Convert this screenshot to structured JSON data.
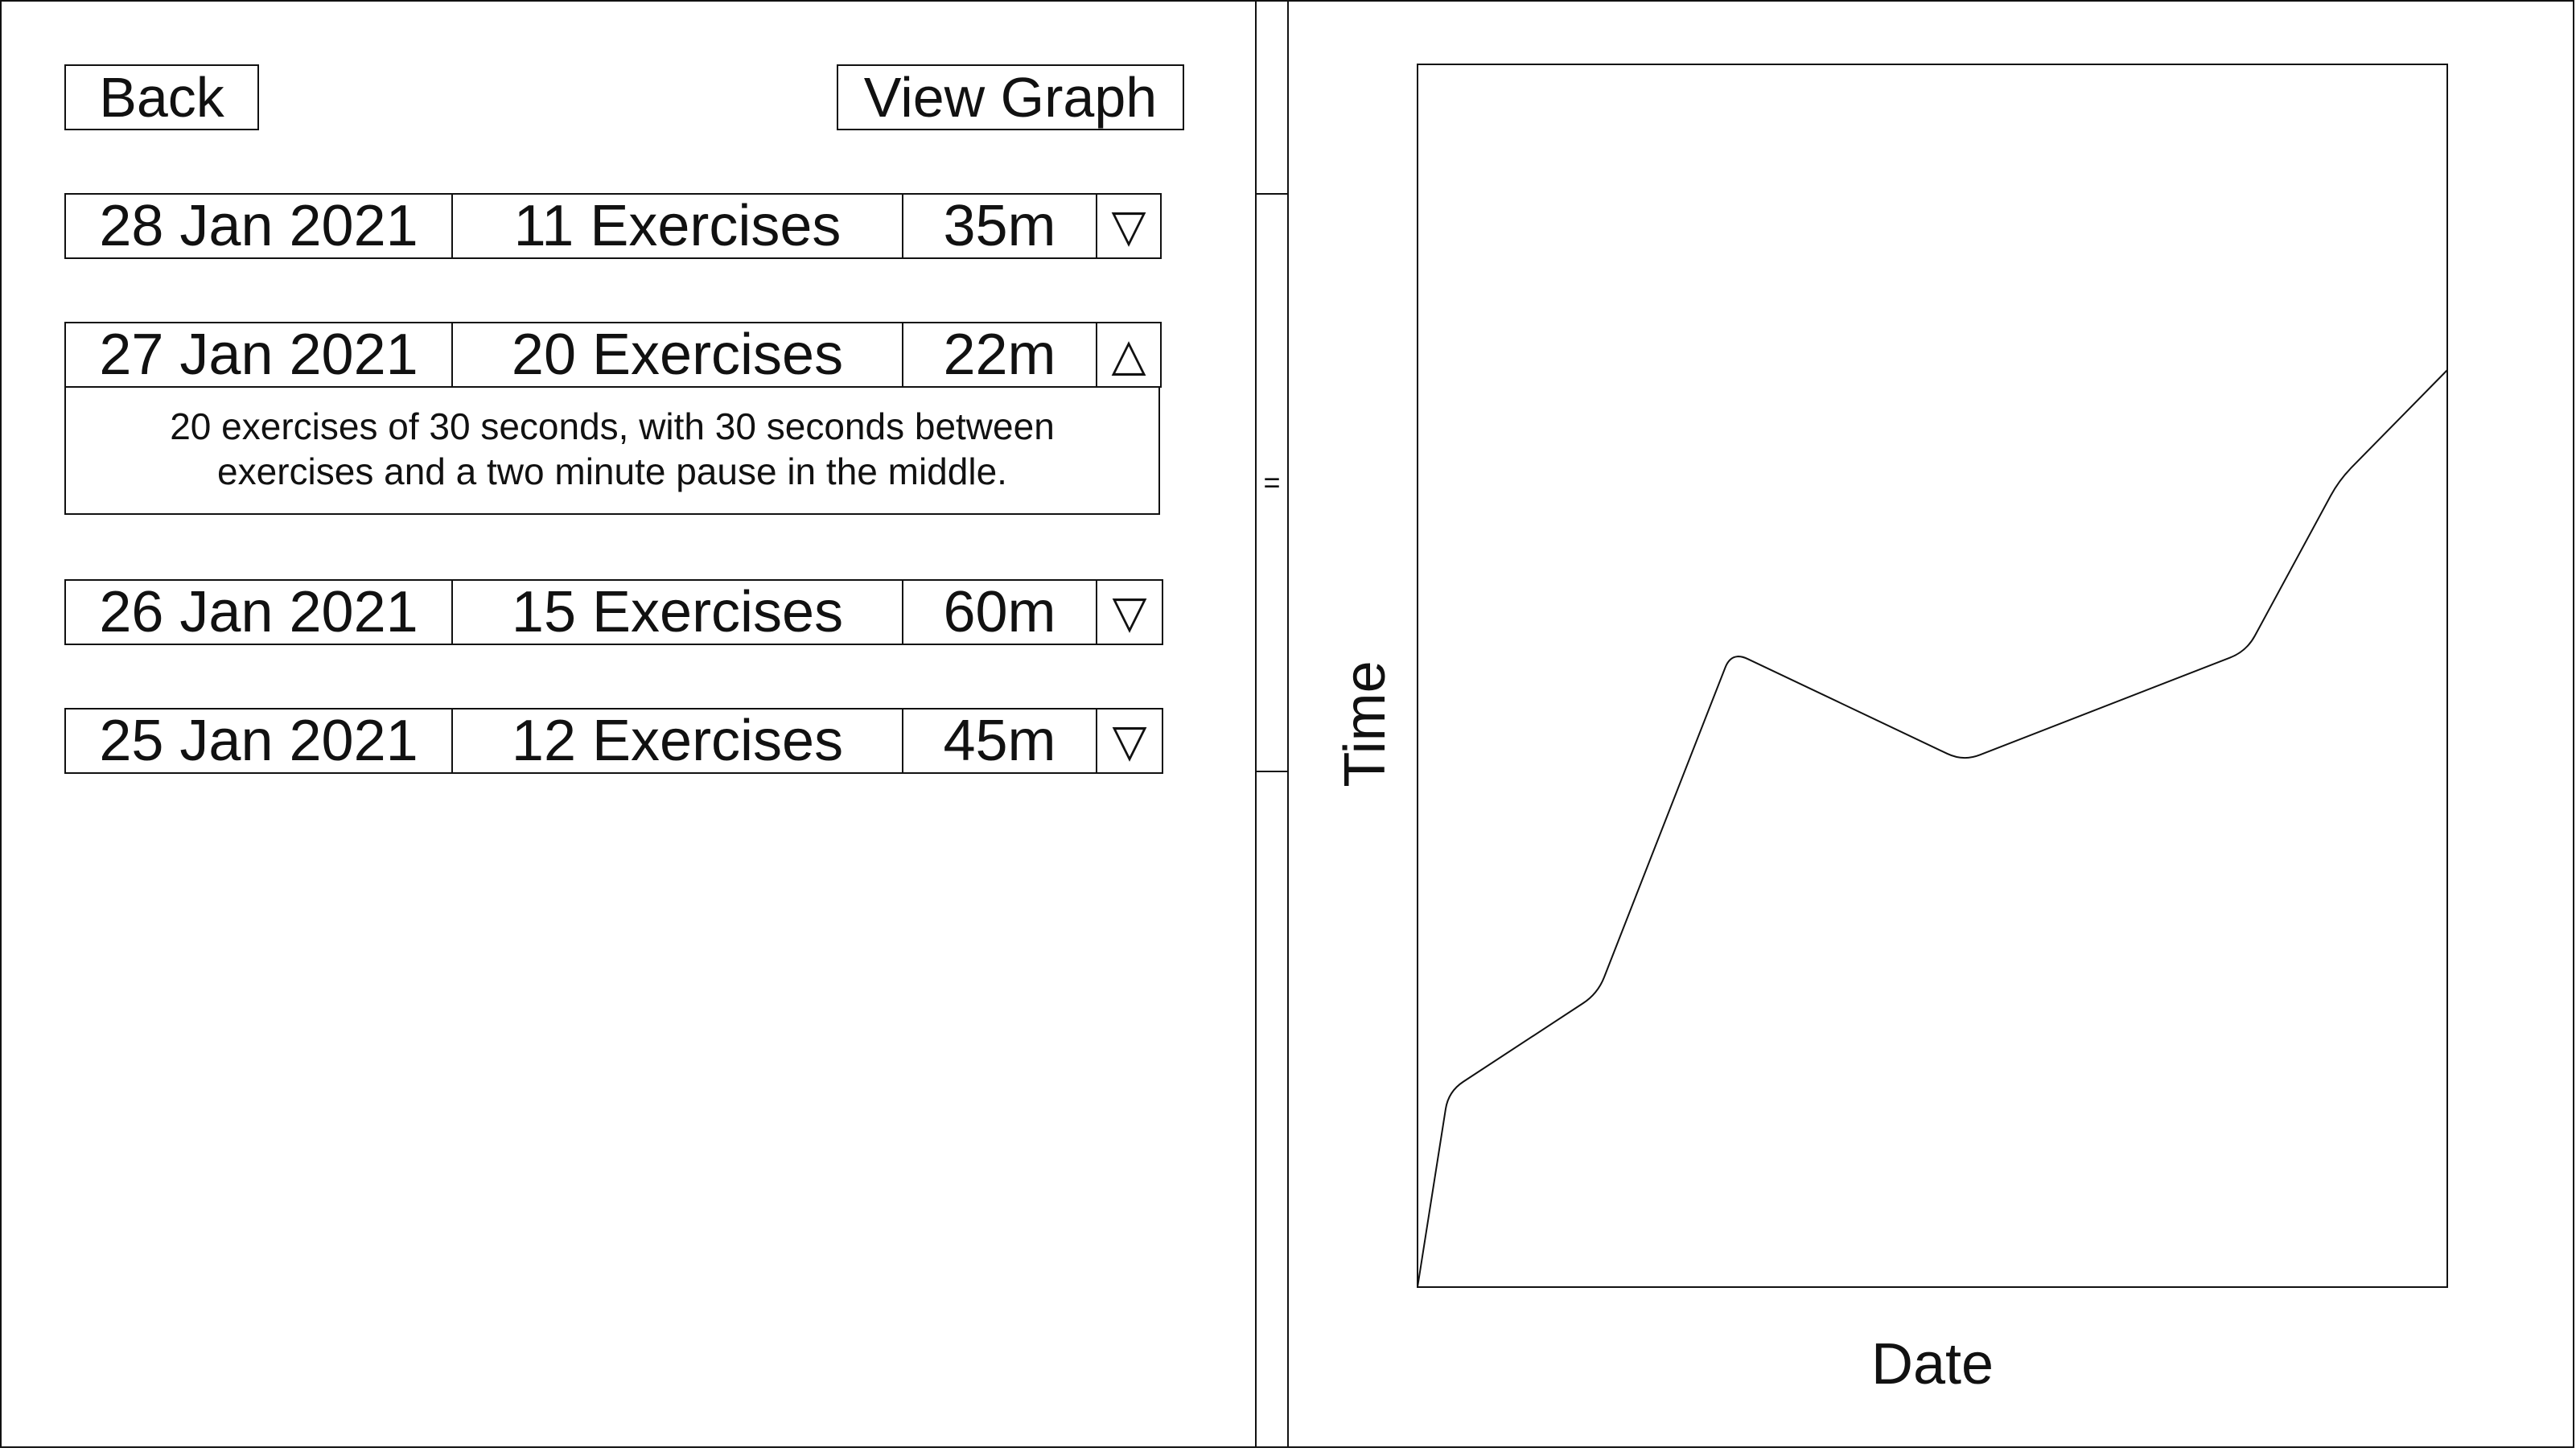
{
  "toolbar": {
    "back_label": "Back",
    "view_graph_label": "View Graph"
  },
  "sessions": [
    {
      "date": "28 Jan 2021",
      "exercises": "11 Exercises",
      "duration": "35m",
      "toggle": "▽",
      "expanded": false
    },
    {
      "date": "27 Jan 2021",
      "exercises": "20 Exercises",
      "duration": "22m",
      "toggle": "△",
      "expanded": true,
      "details": "20 exercises of 30 seconds, with 30 seconds between exercises and a two minute pause in the middle."
    },
    {
      "date": "26 Jan 2021",
      "exercises": "15 Exercises",
      "duration": "60m",
      "toggle": "▽",
      "expanded": false
    },
    {
      "date": "25 Jan 2021",
      "exercises": "12 Exercises",
      "duration": "45m",
      "toggle": "▽",
      "expanded": false
    }
  ],
  "scrollbar": {
    "handle_glyph": "="
  },
  "chart_data": {
    "type": "line",
    "title": "",
    "xlabel": "Date",
    "ylabel": "Time",
    "grid": false,
    "ticks_visible": false,
    "xlim": [
      0,
      100
    ],
    "ylim": [
      0,
      100
    ],
    "series": [
      {
        "values": [
          {
            "x": 0,
            "y": 0
          },
          {
            "x": 3,
            "y": 16
          },
          {
            "x": 17.5,
            "y": 24
          },
          {
            "x": 30.5,
            "y": 52
          },
          {
            "x": 53,
            "y": 43
          },
          {
            "x": 80.5,
            "y": 52
          },
          {
            "x": 89.5,
            "y": 66
          },
          {
            "x": 100,
            "y": 75
          }
        ]
      }
    ],
    "line_color": "#111111"
  }
}
